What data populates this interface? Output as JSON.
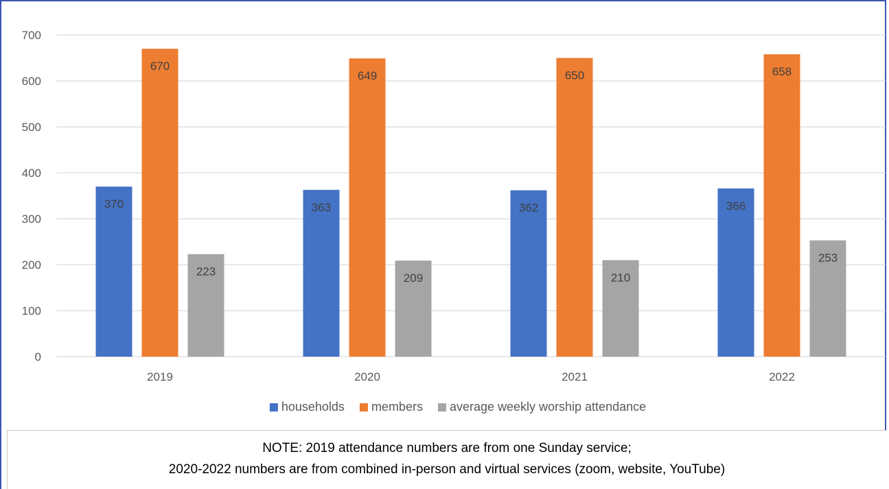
{
  "chart_data": {
    "type": "bar",
    "categories": [
      "2019",
      "2020",
      "2021",
      "2022"
    ],
    "series": [
      {
        "name": "households",
        "color": "#4472c4",
        "values": [
          370,
          363,
          362,
          366
        ]
      },
      {
        "name": "members",
        "color": "#ed7d31",
        "values": [
          670,
          649,
          650,
          658
        ]
      },
      {
        "name": "average weekly worship attendance",
        "color": "#a5a5a5",
        "values": [
          223,
          209,
          210,
          253
        ]
      }
    ],
    "ylim": [
      0,
      700
    ],
    "yticks": [
      "0",
      "100",
      "200",
      "300",
      "400",
      "500",
      "600",
      "700"
    ],
    "grid": true,
    "legend_position": "bottom"
  },
  "note": {
    "line1": "NOTE: 2019 attendance numbers are from one Sunday service;",
    "line2": "2020-2022 numbers are from combined in-person and virtual services (zoom, website, YouTube)"
  },
  "colors": {
    "frame": "#3a55b4",
    "grid": "#d9d9d9",
    "axis_text": "#595959"
  }
}
